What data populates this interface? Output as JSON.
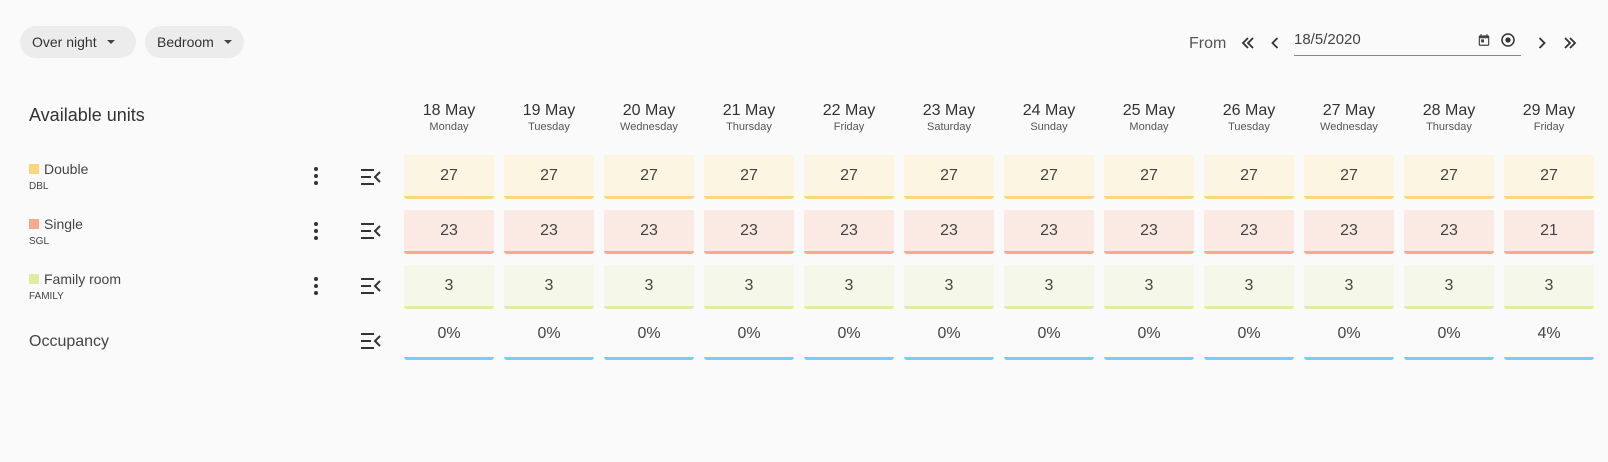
{
  "filters": {
    "period_label": "Over night",
    "room_type_label": "Bedroom"
  },
  "date_nav": {
    "from_label": "From",
    "date_value": "18/5/2020"
  },
  "section_title": "Available units",
  "columns": [
    {
      "date": "18 May",
      "weekday": "Monday"
    },
    {
      "date": "19 May",
      "weekday": "Tuesday"
    },
    {
      "date": "20 May",
      "weekday": "Wednesday"
    },
    {
      "date": "21 May",
      "weekday": "Thursday"
    },
    {
      "date": "22 May",
      "weekday": "Friday"
    },
    {
      "date": "23 May",
      "weekday": "Saturday"
    },
    {
      "date": "24 May",
      "weekday": "Sunday"
    },
    {
      "date": "25 May",
      "weekday": "Monday"
    },
    {
      "date": "26 May",
      "weekday": "Tuesday"
    },
    {
      "date": "27 May",
      "weekday": "Wednesday"
    },
    {
      "date": "28 May",
      "weekday": "Thursday"
    },
    {
      "date": "29 May",
      "weekday": "Friday"
    }
  ],
  "units": [
    {
      "name": "Double",
      "code": "DBL",
      "color": "#fbd779",
      "values": [
        "27",
        "27",
        "27",
        "27",
        "27",
        "27",
        "27",
        "27",
        "27",
        "27",
        "27",
        "27"
      ]
    },
    {
      "name": "Single",
      "code": "SGL",
      "color": "#f6a98b",
      "values": [
        "23",
        "23",
        "23",
        "23",
        "23",
        "23",
        "23",
        "23",
        "23",
        "23",
        "23",
        "21"
      ]
    },
    {
      "name": "Family room",
      "code": "FAMILY",
      "color": "#e1ec9f",
      "values": [
        "3",
        "3",
        "3",
        "3",
        "3",
        "3",
        "3",
        "3",
        "3",
        "3",
        "3",
        "3"
      ]
    }
  ],
  "occupancy": {
    "label": "Occupancy",
    "color": "#72cff5",
    "values": [
      "0%",
      "0%",
      "0%",
      "0%",
      "0%",
      "0%",
      "0%",
      "0%",
      "0%",
      "0%",
      "0%",
      "4%"
    ]
  },
  "icons": {
    "first": "double-chevron-left-icon",
    "prev": "chevron-left-icon",
    "calendar": "calendar-icon",
    "today": "target-icon",
    "next": "chevron-right-icon",
    "last": "double-chevron-right-icon",
    "more": "more-vert-icon",
    "collapse": "menu-collapse-icon"
  }
}
